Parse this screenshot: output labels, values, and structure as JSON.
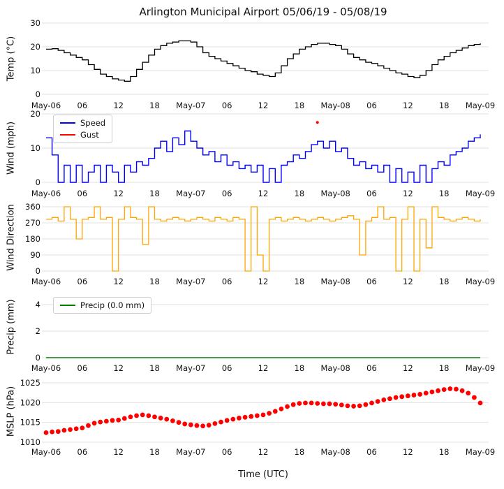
{
  "title": "Arlington Municipal Airport 05/06/19 - 05/08/19",
  "x_axis": {
    "label": "Time (UTC)",
    "xlim_hours": [
      0,
      72
    ],
    "tick_positions": [
      0,
      6,
      12,
      18,
      24,
      30,
      36,
      42,
      48,
      54,
      60,
      66,
      72
    ],
    "tick_labels": [
      "May-06",
      "06",
      "12",
      "18",
      "May-07",
      "06",
      "12",
      "18",
      "May-08",
      "06",
      "12",
      "18",
      "May-09"
    ]
  },
  "chart_data": [
    {
      "id": "temp",
      "type": "line",
      "ylabel": "Temp (°C)",
      "ylim": [
        0,
        30
      ],
      "yticks": [
        0,
        10,
        20,
        30
      ],
      "grid": "horizontal",
      "series": [
        {
          "name": "temperature",
          "color": "#000000",
          "render": "step",
          "width": 1.3,
          "values": [
            19.0,
            19.2,
            18.5,
            17.5,
            16.5,
            15.5,
            14.5,
            12.5,
            10.5,
            8.5,
            7.5,
            6.5,
            6.0,
            5.5,
            7.5,
            10.5,
            13.5,
            16.5,
            19.0,
            20.5,
            21.5,
            22.0,
            22.5,
            22.5,
            22.0,
            20.0,
            17.5,
            16.0,
            15.0,
            14.0,
            13.0,
            12.0,
            11.0,
            10.0,
            9.5,
            8.5,
            8.0,
            7.5,
            9.0,
            12.0,
            15.0,
            17.0,
            19.0,
            20.0,
            21.0,
            21.5,
            21.5,
            21.0,
            20.5,
            19.0,
            17.0,
            15.5,
            14.5,
            13.5,
            13.0,
            12.0,
            11.0,
            10.0,
            9.0,
            8.5,
            7.5,
            7.0,
            8.0,
            10.0,
            12.5,
            14.5,
            16.0,
            17.5,
            18.5,
            19.5,
            20.5,
            21.0,
            21.5
          ]
        }
      ]
    },
    {
      "id": "wind",
      "type": "line",
      "ylabel": "Wind (mph)",
      "ylim": [
        0,
        20
      ],
      "yticks": [
        0,
        10,
        20
      ],
      "grid": "horizontal",
      "legend": [
        {
          "label": "Speed",
          "color": "#0000ff"
        },
        {
          "label": "Gust",
          "color": "#ff0000"
        }
      ],
      "series": [
        {
          "name": "wind-speed",
          "color": "#0000ff",
          "render": "step",
          "width": 1.4,
          "values": [
            13,
            8,
            0,
            5,
            0,
            5,
            0,
            3,
            5,
            0,
            5,
            3,
            0,
            5,
            3,
            6,
            5,
            7,
            10,
            12,
            9,
            13,
            11,
            15,
            12,
            10,
            8,
            9,
            6,
            8,
            5,
            6,
            4,
            5,
            3,
            5,
            0,
            4,
            0,
            5,
            6,
            8,
            7,
            9,
            11,
            12,
            10,
            12,
            9,
            10,
            7,
            5,
            6,
            4,
            5,
            3,
            5,
            0,
            4,
            0,
            3,
            0,
            5,
            0,
            4,
            6,
            5,
            8,
            9,
            10,
            12,
            13,
            14
          ]
        },
        {
          "name": "wind-gust",
          "color": "#ff0000",
          "render": "points",
          "points": [
            [
              45,
              17.5
            ]
          ]
        }
      ]
    },
    {
      "id": "winddir",
      "type": "line",
      "ylabel": "Wind Direction",
      "ylim": [
        0,
        360
      ],
      "yticks": [
        0,
        90,
        180,
        270,
        360
      ],
      "grid": "horizontal",
      "series": [
        {
          "name": "wind-direction",
          "color": "#ffa500",
          "render": "step",
          "width": 1.3,
          "values": [
            290,
            300,
            280,
            360,
            290,
            180,
            290,
            300,
            360,
            290,
            300,
            0,
            290,
            360,
            300,
            290,
            150,
            360,
            290,
            280,
            290,
            300,
            290,
            280,
            290,
            300,
            290,
            280,
            300,
            290,
            280,
            300,
            290,
            0,
            360,
            90,
            0,
            290,
            300,
            280,
            290,
            300,
            290,
            280,
            290,
            300,
            290,
            280,
            290,
            300,
            310,
            290,
            90,
            280,
            300,
            360,
            290,
            300,
            0,
            290,
            360,
            0,
            290,
            130,
            360,
            300,
            290,
            280,
            290,
            300,
            290,
            280,
            290
          ]
        }
      ]
    },
    {
      "id": "precip",
      "type": "line",
      "ylabel": "Precip (mm)",
      "ylim": [
        0,
        4
      ],
      "yticks": [
        0,
        2,
        4
      ],
      "grid": "horizontal",
      "legend": [
        {
          "label": "Precip (0.0 mm)",
          "color": "#008000"
        }
      ],
      "series": [
        {
          "name": "precipitation",
          "color": "#008000",
          "render": "line",
          "width": 1.6,
          "values": [
            0,
            0,
            0,
            0,
            0,
            0,
            0,
            0,
            0,
            0,
            0,
            0,
            0,
            0,
            0,
            0,
            0,
            0,
            0,
            0,
            0,
            0,
            0,
            0,
            0,
            0,
            0,
            0,
            0,
            0,
            0,
            0,
            0,
            0,
            0,
            0,
            0,
            0,
            0,
            0,
            0,
            0,
            0,
            0,
            0,
            0,
            0,
            0,
            0,
            0,
            0,
            0,
            0,
            0,
            0,
            0,
            0,
            0,
            0,
            0,
            0,
            0,
            0,
            0,
            0,
            0,
            0,
            0,
            0,
            0,
            0,
            0,
            0
          ]
        }
      ]
    },
    {
      "id": "mslp",
      "type": "scatter",
      "ylabel": "MSLP (hPa)",
      "ylim": [
        1010,
        1025
      ],
      "yticks": [
        1010,
        1015,
        1020,
        1025
      ],
      "grid": "horizontal",
      "series": [
        {
          "name": "mslp",
          "color": "#ff0000",
          "render": "dots",
          "values": [
            1012.4,
            1012.6,
            1012.7,
            1013.0,
            1013.2,
            1013.4,
            1013.6,
            1014.2,
            1014.8,
            1015.1,
            1015.3,
            1015.5,
            1015.6,
            1016.0,
            1016.4,
            1016.7,
            1016.9,
            1016.7,
            1016.4,
            1016.1,
            1015.8,
            1015.4,
            1015.0,
            1014.6,
            1014.4,
            1014.2,
            1014.1,
            1014.3,
            1014.7,
            1015.1,
            1015.5,
            1015.8,
            1016.1,
            1016.3,
            1016.5,
            1016.7,
            1016.9,
            1017.3,
            1017.8,
            1018.4,
            1019.0,
            1019.5,
            1019.8,
            1019.9,
            1019.9,
            1019.8,
            1019.7,
            1019.7,
            1019.6,
            1019.4,
            1019.2,
            1019.1,
            1019.2,
            1019.5,
            1019.9,
            1020.3,
            1020.7,
            1021.0,
            1021.3,
            1021.5,
            1021.7,
            1021.9,
            1022.1,
            1022.4,
            1022.7,
            1023.0,
            1023.3,
            1023.5,
            1023.4,
            1023.0,
            1022.4,
            1021.3,
            1019.9
          ]
        }
      ]
    }
  ]
}
